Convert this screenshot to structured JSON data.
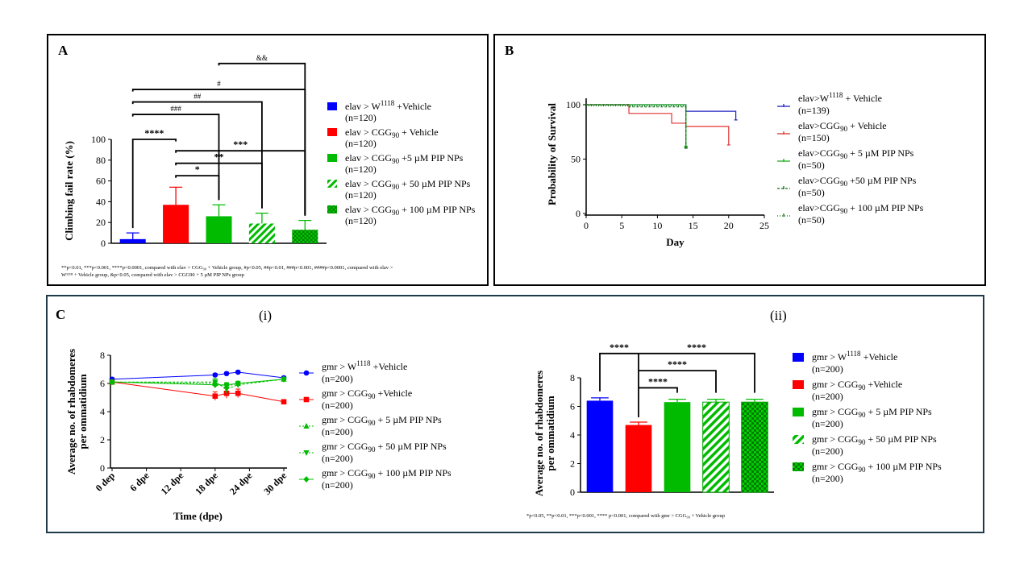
{
  "panel_a": {
    "label": "A",
    "ylabel": "Climbing fail rate (%)",
    "footnote_1": "**p<0.01, ***p<0.001, ****p<0.0001, compared with elav > CGG₉₀ + Vehicle group,  #p<0.05, ##p<0.01, ###p<0.001, ####p<0.0001, compared with elav >",
    "footnote_2": "W¹¹¹⁸ + Vehicle group,  &p<0.05, compared with elav > CGG90 + 5 µM PIP NPs group",
    "legend": [
      {
        "base": "elav > W",
        "sub": "",
        "sup": "1118",
        "tail": " +Vehicle",
        "n": "(n=120)",
        "color": "#0000ff",
        "pattern": "solid"
      },
      {
        "base": "elav > CGG",
        "sub": "90",
        "sup": "",
        "tail": " + Vehicle",
        "n": "(n=120)",
        "color": "#ff0000",
        "pattern": "solid"
      },
      {
        "base": "elav > CGG",
        "sub": "90",
        "sup": "",
        "tail": " +5 µM PIP NPs",
        "n": "(n=120)",
        "color": "#00bb00",
        "pattern": "solid"
      },
      {
        "base": "elav > CGG",
        "sub": "90",
        "sup": "",
        "tail": " + 50 µM PIP NPs",
        "n": "(n=120)",
        "color": "#00bb00",
        "pattern": "hatch"
      },
      {
        "base": "elav > CGG",
        "sub": "90",
        "sup": "",
        "tail": " + 100 µM PIP NPs",
        "n": "(n=120)",
        "color": "#00bb00",
        "pattern": "check"
      }
    ]
  },
  "panel_b": {
    "label": "B",
    "legend": [
      {
        "base": "elav>W",
        "sub": "",
        "sup": "1118",
        "tail": " + Vehicle",
        "n": "(n=139)",
        "color": "#2020c0",
        "symbol": "bar"
      },
      {
        "base": "elav>CGG",
        "sub": "90",
        "sup": "",
        "tail": " + Vehicle",
        "n": "(n=150)",
        "color": "#e03030",
        "symbol": "bar"
      },
      {
        "base": "elav>CGG",
        "sub": "90",
        "sup": "",
        "tail": " + 5 µM PIP NPs",
        "n": "(n=50)",
        "color": "#20b020",
        "symbol": "bar"
      },
      {
        "base": "elav>CGG",
        "sub": "90",
        "sup": "",
        "tail": " +50 µM PIP NPs",
        "n": "(n=50)",
        "color": "#107010",
        "symbol": "dash"
      },
      {
        "base": "elav>CGG",
        "sub": "90",
        "sup": "",
        "tail": " + 100 µM PIP NPs",
        "n": "(n=50)",
        "color": "#107010",
        "symbol": "dot"
      }
    ]
  },
  "panel_c": {
    "label": "C",
    "sub_i": "(i)",
    "sub_ii": "(ii)",
    "ylabel_1": "Average no. of rhabdomeres",
    "ylabel_2": "per ommatidium",
    "legend_i": [
      {
        "base": "gmr > W",
        "sub": "",
        "sup": "1118",
        "tail": " +Vehicle",
        "n": "(n=200)",
        "color": "#0000ff",
        "marker": "circle"
      },
      {
        "base": "gmr > CGG",
        "sub": "90",
        "sup": "",
        "tail": " +Vehicle",
        "n": "(n=200)",
        "color": "#ff0000",
        "marker": "square"
      },
      {
        "base": "gmr > CGG",
        "sub": "90",
        "sup": "",
        "tail": " + 5 µM PIP NPs",
        "n": "(n=200)",
        "color": "#00bb00",
        "marker": "triangle"
      },
      {
        "base": "gmr > CGG",
        "sub": "90",
        "sup": "",
        "tail": " + 50 µM PIP NPs",
        "n": "(n=200)",
        "color": "#00bb00",
        "marker": "tri-down"
      },
      {
        "base": "gmr > CGG",
        "sub": "90",
        "sup": "",
        "tail": " + 100 µM PIP NPs",
        "n": "(n=200)",
        "color": "#00bb00",
        "marker": "diamond"
      }
    ],
    "legend_ii": [
      {
        "base": "gmr > W",
        "sub": "",
        "sup": "1118",
        "tail": " +Vehicle",
        "n": "(n=200)",
        "color": "#0000ff",
        "pattern": "solid"
      },
      {
        "base": "gmr > CGG",
        "sub": "90",
        "sup": "",
        "tail": " +Vehicle",
        "n": "(n=200)",
        "color": "#ff0000",
        "pattern": "solid"
      },
      {
        "base": "gmr > CGG",
        "sub": "90",
        "sup": "",
        "tail": " + 5 µM PIP NPs",
        "n": "(n=200)",
        "color": "#00bb00",
        "pattern": "solid"
      },
      {
        "base": "gmr > CGG",
        "sub": "90",
        "sup": "",
        "tail": " + 50 µM PIP NPs",
        "n": "(n=200)",
        "color": "#00bb00",
        "pattern": "hatch"
      },
      {
        "base": "gmr > CGG",
        "sub": "90",
        "sup": "",
        "tail": " + 100 µM PIP NPs",
        "n": "(n=200)",
        "color": "#00bb00",
        "pattern": "check"
      }
    ],
    "footnote_ii": "*p<0.05, **p<0.01, ***p<0.001, **** p<0.001, compared with gmr > CGG₉₀ + Vehicle group"
  },
  "chart_data": [
    {
      "id": "A",
      "type": "bar",
      "title": "",
      "xlabel": "",
      "ylabel": "Climbing fail rate (%)",
      "ylim": [
        0,
        100
      ],
      "yticks": [
        0,
        20,
        40,
        60,
        80,
        100
      ],
      "categories": [
        "elav > W1118 +Vehicle",
        "elav > CGG90 + Vehicle",
        "elav > CGG90 +5 µM PIP NPs",
        "elav > CGG90 + 50 µM PIP NPs",
        "elav > CGG90 + 100 µM PIP NPs"
      ],
      "values": [
        4,
        37,
        26,
        19,
        13
      ],
      "errors": [
        6,
        17,
        11,
        10,
        9
      ],
      "colors": [
        "#0000ff",
        "#ff0000",
        "#00bb00",
        "#00bb00",
        "#00bb00"
      ],
      "patterns": [
        "solid",
        "solid",
        "solid",
        "hatch",
        "check"
      ],
      "brackets": [
        {
          "from": 1,
          "to": 0,
          "label": "****",
          "y": 100
        },
        {
          "from": 1,
          "to": 2,
          "label": "*",
          "y": 65
        },
        {
          "from": 1,
          "to": 3,
          "label": "**",
          "y": 77
        },
        {
          "from": 1,
          "to": 4,
          "label": "***",
          "y": 89
        },
        {
          "from": 0,
          "to": 2,
          "label": "###",
          "y": 124
        },
        {
          "from": 0,
          "to": 3,
          "label": "##",
          "y": 136
        },
        {
          "from": 0,
          "to": 4,
          "label": "#",
          "y": 148
        },
        {
          "from": 2,
          "to": 4,
          "label": "&&",
          "y": 173
        }
      ]
    },
    {
      "id": "B",
      "type": "line",
      "title": "",
      "xlabel": "Day",
      "ylabel": "Probability of Survival",
      "xlim": [
        0,
        25
      ],
      "ylim": [
        0,
        100
      ],
      "xticks": [
        0,
        5,
        10,
        15,
        20,
        25
      ],
      "yticks": [
        0,
        50,
        100
      ],
      "series": [
        {
          "name": "elav>W1118 + Vehicle (n=139)",
          "color": "#2020c0",
          "dash": "",
          "x": [
            0,
            14,
            14,
            21,
            21
          ],
          "y": [
            100,
            100,
            94,
            94,
            86
          ]
        },
        {
          "name": "elav>CGG90 + Vehicle (n=150)",
          "color": "#e03030",
          "dash": "",
          "x": [
            0,
            6,
            6,
            12,
            12,
            14,
            14,
            20,
            20
          ],
          "y": [
            100,
            100,
            92,
            92,
            83,
            83,
            80,
            80,
            63
          ]
        },
        {
          "name": "elav>CGG90 + 5 µM PIP NPs (n=50)",
          "color": "#20b020",
          "dash": "",
          "x": [
            0,
            14,
            14
          ],
          "y": [
            100,
            100,
            62
          ]
        },
        {
          "name": "elav>CGG90 +50 µM PIP NPs (n=50)",
          "color": "#107010",
          "dash": "3,2",
          "x": [
            0,
            6,
            6,
            14,
            14
          ],
          "y": [
            100,
            100,
            98,
            98,
            60
          ]
        },
        {
          "name": "elav>CGG90 + 100 µM PIP NPs (n=50)",
          "color": "#107010",
          "dash": "1,2",
          "x": [
            0,
            14,
            14
          ],
          "y": [
            99,
            99,
            61
          ]
        }
      ]
    },
    {
      "id": "C-i",
      "type": "line",
      "title": "",
      "xlabel": "Time (dpe)",
      "ylabel": "Average no. of rhabdomeres per ommatidium",
      "xlim": [
        0,
        30
      ],
      "ylim": [
        0,
        8
      ],
      "xtick_values": [
        0,
        6,
        12,
        18,
        24,
        30
      ],
      "xtick_labels": [
        "0 dep",
        "6 dpe",
        "12 dpe",
        "18 dpe",
        "24 dpe",
        "30 dpe"
      ],
      "yticks": [
        0,
        2,
        4,
        6,
        8
      ],
      "series": [
        {
          "name": "gmr > W1118 +Vehicle",
          "color": "#0000ff",
          "marker": "circle",
          "dash": "",
          "x": [
            0,
            18,
            20,
            22,
            30
          ],
          "y": [
            6.3,
            6.6,
            6.7,
            6.8,
            6.4
          ],
          "err": [
            0.1,
            0.1,
            0.1,
            0.1,
            0.1
          ]
        },
        {
          "name": "gmr > CGG90 +Vehicle",
          "color": "#ff0000",
          "marker": "square",
          "dash": "",
          "x": [
            0,
            18,
            20,
            22,
            30
          ],
          "y": [
            6.1,
            5.1,
            5.3,
            5.3,
            4.7
          ],
          "err": [
            0.15,
            0.3,
            0.35,
            0.3,
            0.15
          ]
        },
        {
          "name": "gmr > CGG90 + 5 µM PIP NPs",
          "color": "#00bb00",
          "marker": "triangle",
          "dash": "2,2",
          "x": [
            0,
            18,
            20,
            22,
            30
          ],
          "y": [
            6.1,
            6.0,
            5.8,
            6.0,
            6.3
          ],
          "err": [
            0.1,
            0.15,
            0.2,
            0.15,
            0.1
          ]
        },
        {
          "name": "gmr > CGG90 + 50 µM PIP NPs",
          "color": "#00bb00",
          "marker": "tri-down",
          "dash": "3,2",
          "x": [
            0,
            18,
            20,
            22,
            30
          ],
          "y": [
            6.1,
            6.1,
            5.6,
            5.9,
            6.3
          ],
          "err": [
            0.1,
            0.25,
            0.3,
            0.2,
            0.1
          ]
        },
        {
          "name": "gmr > CGG90 + 100 µM PIP NPs",
          "color": "#00bb00",
          "marker": "diamond",
          "dash": "",
          "x": [
            0,
            18,
            20,
            22,
            30
          ],
          "y": [
            6.1,
            5.9,
            5.9,
            6.0,
            6.3
          ],
          "err": [
            0.1,
            0.15,
            0.15,
            0.15,
            0.1
          ]
        }
      ]
    },
    {
      "id": "C-ii",
      "type": "bar",
      "title": "",
      "xlabel": "",
      "ylabel": "Average no. of rhabdomeres per ommatidium",
      "ylim": [
        0,
        8
      ],
      "yticks": [
        0,
        2,
        4,
        6,
        8
      ],
      "categories": [
        "gmr > W1118 +Vehicle",
        "gmr > CGG90 +Vehicle",
        "gmr > CGG90 + 5 µM PIP NPs",
        "gmr > CGG90 + 50 µM PIP NPs",
        "gmr > CGG90 + 100 µM PIP NPs"
      ],
      "values": [
        6.4,
        4.7,
        6.3,
        6.3,
        6.3
      ],
      "errors": [
        0.2,
        0.2,
        0.2,
        0.2,
        0.2
      ],
      "colors": [
        "#0000ff",
        "#ff0000",
        "#00bb00",
        "#00bb00",
        "#00bb00"
      ],
      "patterns": [
        "solid",
        "solid",
        "solid",
        "hatch",
        "check"
      ],
      "brackets": [
        {
          "from": 1,
          "to": 2,
          "label": "****",
          "y": 7.3
        },
        {
          "from": 1,
          "to": 3,
          "label": "****",
          "y": 8.5
        },
        {
          "from": 1,
          "to": 0,
          "label": "****",
          "y": 9.7
        },
        {
          "from": 1,
          "to": 4,
          "label": "****",
          "y": 9.7
        }
      ]
    }
  ]
}
